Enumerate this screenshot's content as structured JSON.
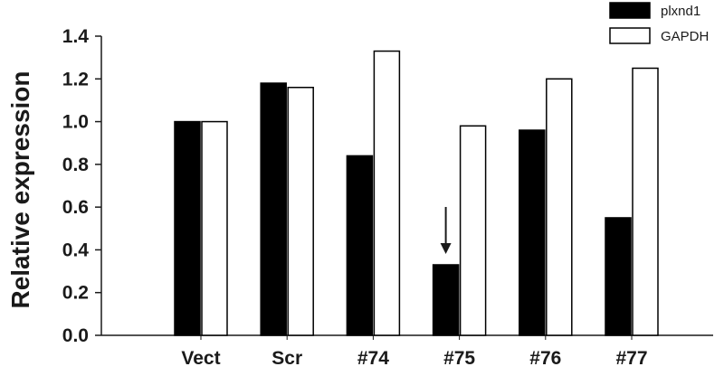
{
  "chart_data": {
    "type": "bar",
    "categories": [
      "Vect",
      "Scr",
      "#74",
      "#75",
      "#76",
      "#77"
    ],
    "series": [
      {
        "name": "plxnd1",
        "values": [
          1.0,
          1.18,
          0.84,
          0.33,
          0.96,
          0.55
        ],
        "color": "#000000"
      },
      {
        "name": "GAPDH",
        "values": [
          1.0,
          1.16,
          1.33,
          0.98,
          1.2,
          1.25
        ],
        "color": "#ffffff"
      }
    ],
    "ylabel": "Relative expression",
    "xlabel": "",
    "ylim": [
      0,
      1.4
    ],
    "yticks": [
      "0.0",
      "0.2",
      "0.4",
      "0.6",
      "0.8",
      "1.0",
      "1.2",
      "1.4"
    ],
    "grid": false,
    "legend_position": "top-right",
    "annotations": [
      {
        "type": "arrow-down",
        "category": "#75",
        "series": "plxnd1"
      }
    ]
  }
}
